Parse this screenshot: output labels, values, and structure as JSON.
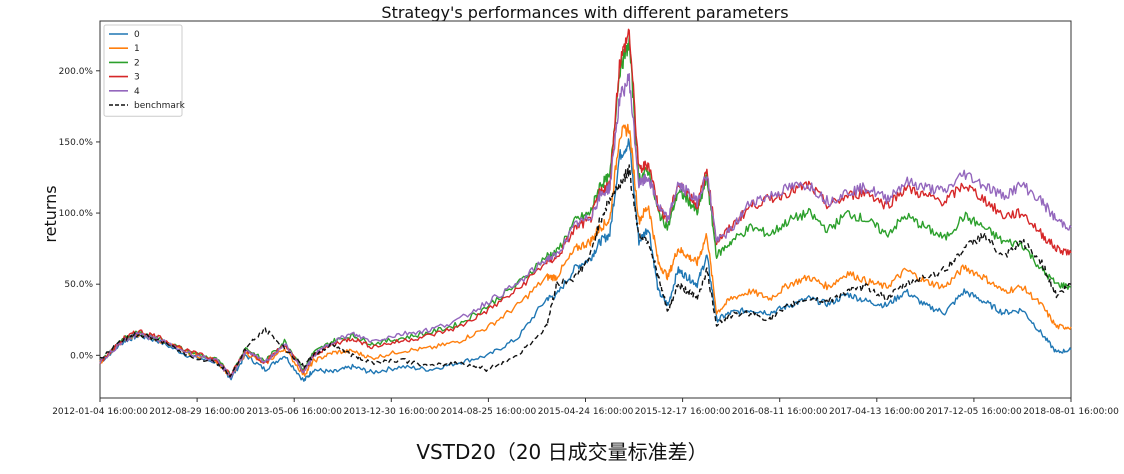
{
  "chart_data": {
    "type": "line",
    "title": "Strategy's performances with different parameters",
    "ylabel": "returns",
    "xlabel": "",
    "x_ticks": [
      "2012-01-04 16:00:00",
      "2012-08-29 16:00:00",
      "2013-05-06 16:00:00",
      "2013-12-30 16:00:00",
      "2014-08-25 16:00:00",
      "2015-04-24 16:00:00",
      "2015-12-17 16:00:00",
      "2016-08-11 16:00:00",
      "2017-04-13 16:00:00",
      "2017-12-05 16:00:00",
      "2018-08-01 16:00:00"
    ],
    "y_ticks": [
      "0.0%",
      "50.0%",
      "100.0%",
      "150.0%",
      "200.0%"
    ],
    "y_tick_values": [
      0,
      50,
      100,
      150,
      200
    ],
    "ylim": [
      -30,
      235
    ],
    "xlim": [
      0,
      100
    ],
    "grid": false,
    "legend_position": "top-left",
    "series": [
      {
        "name": "0",
        "color": "#1f77b4",
        "dash": "",
        "x": [
          0,
          2.5,
          4,
          6,
          9,
          12,
          13.5,
          15,
          17,
          19,
          21,
          22,
          24,
          26,
          28,
          31,
          34,
          37,
          40,
          43,
          46,
          47,
          49,
          50.5,
          51.5,
          52.5,
          53.5,
          54.5,
          55.5,
          56.5,
          57.5,
          58.5,
          59.5,
          60.5,
          61.5,
          62.5,
          63.5,
          65,
          67,
          69,
          71,
          73,
          75,
          77,
          79,
          81,
          83,
          85,
          87,
          89,
          91,
          93,
          95,
          97,
          98.5,
          100
        ],
        "y": [
          -5,
          10,
          14,
          10,
          0,
          -5,
          -16,
          0,
          -10,
          0,
          -18,
          -10,
          -12,
          -8,
          -12,
          -8,
          -10,
          -5,
          0,
          12,
          40,
          42,
          62,
          68,
          80,
          85,
          140,
          150,
          80,
          90,
          45,
          35,
          60,
          55,
          50,
          70,
          25,
          30,
          32,
          30,
          35,
          40,
          36,
          43,
          38,
          35,
          45,
          35,
          30,
          45,
          38,
          30,
          32,
          15,
          2,
          4
        ]
      },
      {
        "name": "1",
        "color": "#ff7f0e",
        "dash": "",
        "x": [
          0,
          2.5,
          4,
          6,
          9,
          12,
          13.5,
          15,
          17,
          19,
          21,
          22,
          24,
          26,
          28,
          31,
          34,
          37,
          40,
          43,
          46,
          47,
          49,
          50.5,
          51.5,
          52.5,
          53.5,
          54.5,
          55.5,
          56.5,
          57.5,
          58.5,
          59.5,
          60.5,
          61.5,
          62.5,
          63.5,
          65,
          67,
          69,
          71,
          73,
          75,
          77,
          79,
          81,
          83,
          85,
          87,
          89,
          91,
          93,
          95,
          97,
          98.5,
          100
        ],
        "y": [
          -5,
          11,
          15,
          11,
          2,
          -4,
          -15,
          2,
          -6,
          5,
          -14,
          -4,
          2,
          3,
          -2,
          3,
          5,
          10,
          20,
          35,
          55,
          55,
          75,
          80,
          90,
          95,
          155,
          160,
          95,
          105,
          65,
          55,
          75,
          70,
          65,
          85,
          30,
          40,
          45,
          40,
          50,
          55,
          48,
          58,
          52,
          48,
          60,
          52,
          48,
          62,
          55,
          45,
          48,
          35,
          20,
          20
        ]
      },
      {
        "name": "2",
        "color": "#2ca02c",
        "dash": "",
        "x": [
          0,
          2.5,
          4,
          6,
          9,
          12,
          13.5,
          15,
          17,
          19,
          21,
          22,
          24,
          26,
          28,
          31,
          34,
          37,
          40,
          43,
          46,
          47,
          49,
          50.5,
          51.5,
          52.5,
          53.5,
          54.5,
          55.5,
          56.5,
          57.5,
          58.5,
          59.5,
          60.5,
          61.5,
          62.5,
          63.5,
          65,
          67,
          69,
          71,
          73,
          75,
          77,
          79,
          81,
          83,
          85,
          87,
          89,
          91,
          93,
          95,
          97,
          98.5,
          100
        ],
        "y": [
          -5,
          12,
          16,
          12,
          3,
          -3,
          -14,
          5,
          -4,
          10,
          -10,
          2,
          10,
          14,
          8,
          12,
          16,
          22,
          35,
          50,
          70,
          72,
          95,
          100,
          120,
          125,
          200,
          220,
          125,
          130,
          100,
          90,
          115,
          110,
          100,
          125,
          70,
          80,
          90,
          85,
          95,
          100,
          88,
          100,
          95,
          85,
          98,
          90,
          82,
          98,
          90,
          80,
          78,
          60,
          50,
          48
        ]
      },
      {
        "name": "3",
        "color": "#d62728",
        "dash": "",
        "x": [
          0,
          2.5,
          4,
          6,
          9,
          12,
          13.5,
          15,
          17,
          19,
          21,
          22,
          24,
          26,
          28,
          31,
          34,
          37,
          40,
          43,
          46,
          47,
          49,
          50.5,
          51.5,
          52.5,
          53.5,
          54.5,
          55.5,
          56.5,
          57.5,
          58.5,
          59.5,
          60.5,
          61.5,
          62.5,
          63.5,
          65,
          67,
          69,
          71,
          73,
          75,
          77,
          79,
          81,
          83,
          85,
          87,
          89,
          91,
          93,
          95,
          97,
          98.5,
          100
        ],
        "y": [
          -5,
          12,
          17,
          13,
          3,
          -3,
          -14,
          4,
          -5,
          8,
          -12,
          0,
          8,
          12,
          6,
          10,
          14,
          20,
          32,
          46,
          66,
          68,
          90,
          95,
          115,
          120,
          205,
          228,
          130,
          135,
          105,
          95,
          120,
          115,
          105,
          130,
          80,
          90,
          105,
          110,
          115,
          120,
          105,
          112,
          115,
          105,
          118,
          112,
          108,
          120,
          110,
          98,
          100,
          85,
          75,
          72
        ]
      },
      {
        "name": "4",
        "color": "#9467bd",
        "dash": "",
        "x": [
          0,
          2.5,
          4,
          6,
          9,
          12,
          13.5,
          15,
          17,
          19,
          21,
          22,
          24,
          26,
          28,
          31,
          34,
          37,
          40,
          43,
          46,
          47,
          49,
          50.5,
          51.5,
          52.5,
          53.5,
          54.5,
          55.5,
          56.5,
          57.5,
          58.5,
          59.5,
          60.5,
          61.5,
          62.5,
          63.5,
          65,
          67,
          69,
          71,
          73,
          75,
          77,
          79,
          81,
          83,
          85,
          87,
          89,
          91,
          93,
          95,
          97,
          98.5,
          100
        ],
        "y": [
          -5,
          11,
          15,
          11,
          2,
          -4,
          -15,
          3,
          -5,
          8,
          -12,
          0,
          10,
          15,
          10,
          15,
          18,
          25,
          38,
          50,
          68,
          70,
          92,
          97,
          112,
          118,
          180,
          195,
          120,
          125,
          105,
          95,
          120,
          115,
          108,
          128,
          80,
          88,
          108,
          112,
          118,
          120,
          108,
          115,
          118,
          110,
          122,
          118,
          115,
          128,
          120,
          112,
          120,
          108,
          95,
          90
        ]
      },
      {
        "name": "benchmark",
        "color": "#111111",
        "dash": "5,3",
        "x": [
          0,
          2.5,
          4,
          6,
          9,
          12,
          13.5,
          15,
          17,
          19,
          21,
          22,
          24,
          26,
          28,
          31,
          34,
          37,
          40,
          43,
          46,
          47,
          49,
          50.5,
          51.5,
          52.5,
          53.5,
          54.5,
          55.5,
          56.5,
          57.5,
          58.5,
          59.5,
          60.5,
          61.5,
          62.5,
          63.5,
          65,
          67,
          69,
          71,
          73,
          75,
          77,
          79,
          81,
          83,
          85,
          87,
          89,
          91,
          93,
          95,
          97,
          98.5,
          100
        ],
        "y": [
          -3,
          12,
          15,
          11,
          0,
          -5,
          -14,
          5,
          18,
          5,
          -8,
          0,
          8,
          0,
          -5,
          -3,
          -8,
          -5,
          -10,
          0,
          20,
          50,
          55,
          70,
          95,
          110,
          120,
          130,
          85,
          80,
          55,
          30,
          50,
          45,
          40,
          60,
          22,
          28,
          30,
          25,
          35,
          40,
          38,
          45,
          48,
          40,
          50,
          55,
          60,
          75,
          85,
          68,
          80,
          65,
          42,
          50
        ]
      }
    ]
  },
  "caption": "VSTD20（20 日成交量标准差）"
}
